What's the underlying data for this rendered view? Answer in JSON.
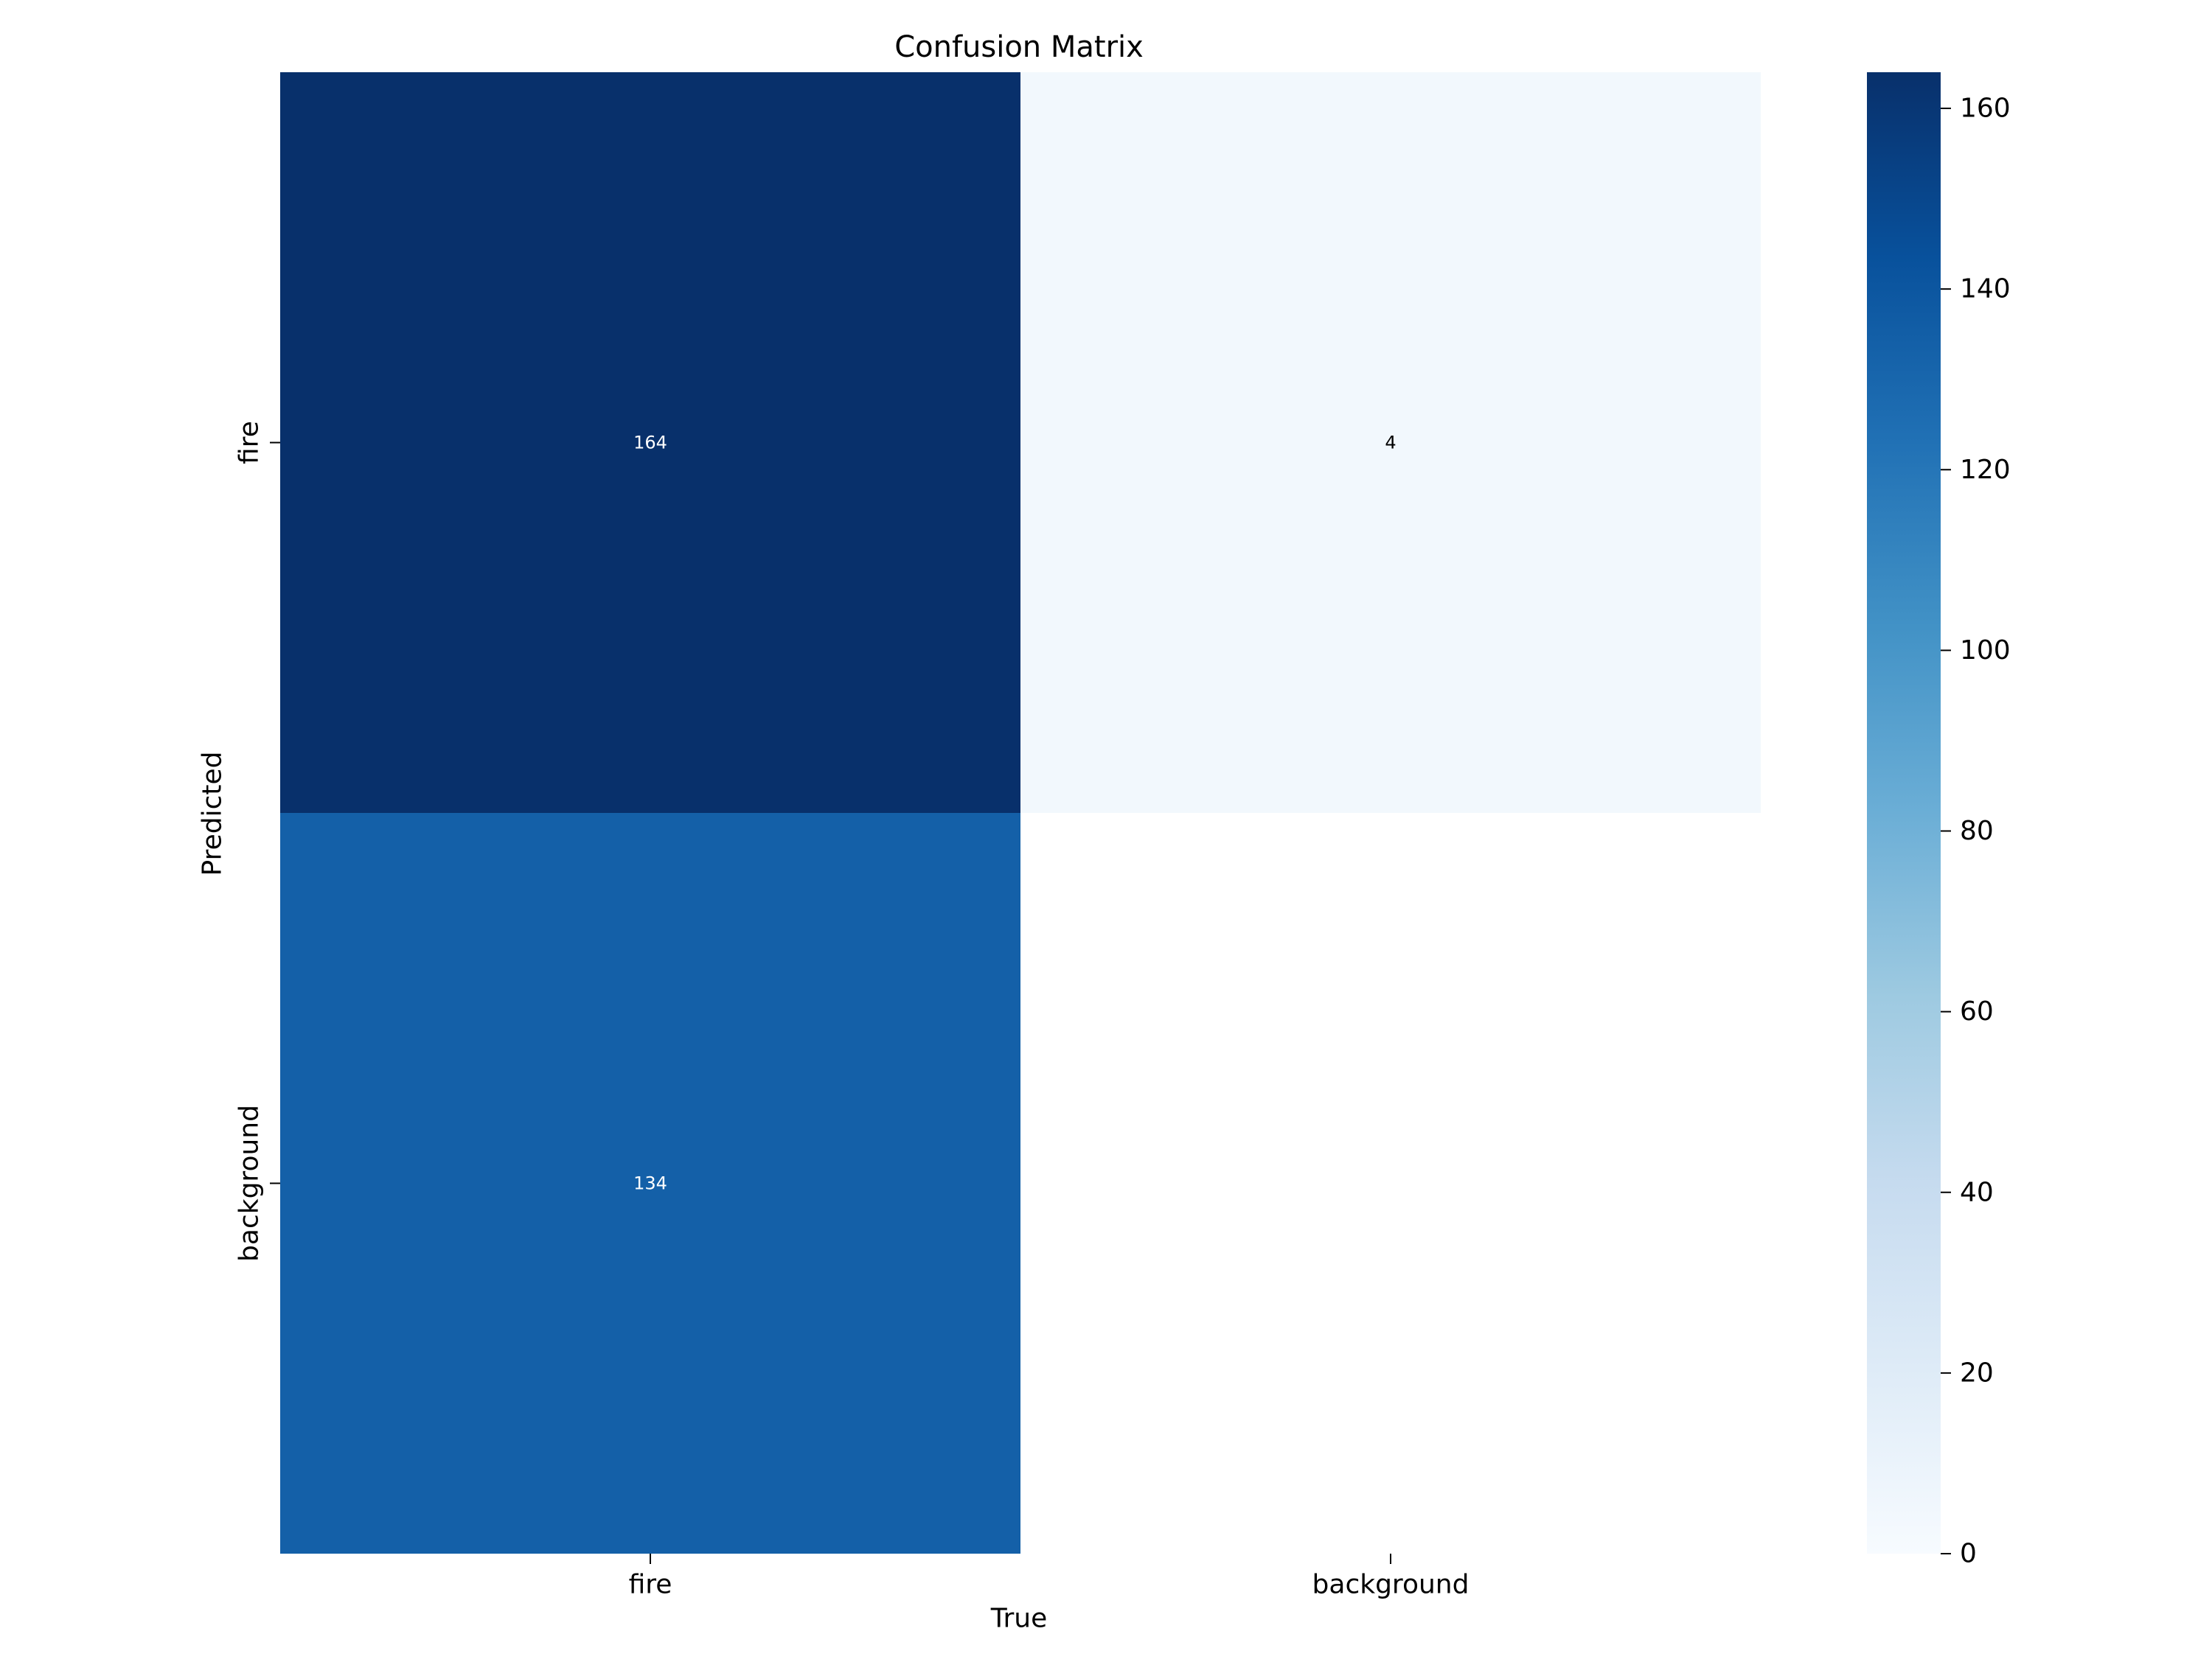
{
  "chart_data": {
    "type": "heatmap",
    "title": "Confusion Matrix",
    "xlabel": "True",
    "ylabel": "Predicted",
    "x_categories": [
      "fire",
      "background"
    ],
    "y_categories": [
      "fire",
      "background"
    ],
    "values": [
      [
        164,
        4
      ],
      [
        134,
        null
      ]
    ],
    "colormap": "Blues",
    "colorbar": {
      "min": 0,
      "max": 164,
      "ticks": [
        0,
        20,
        40,
        60,
        80,
        100,
        120,
        140,
        160
      ],
      "tick_labels": [
        "0",
        "20",
        "40",
        "60",
        "80",
        "100",
        "120",
        "140",
        "160"
      ]
    },
    "grid": false
  }
}
